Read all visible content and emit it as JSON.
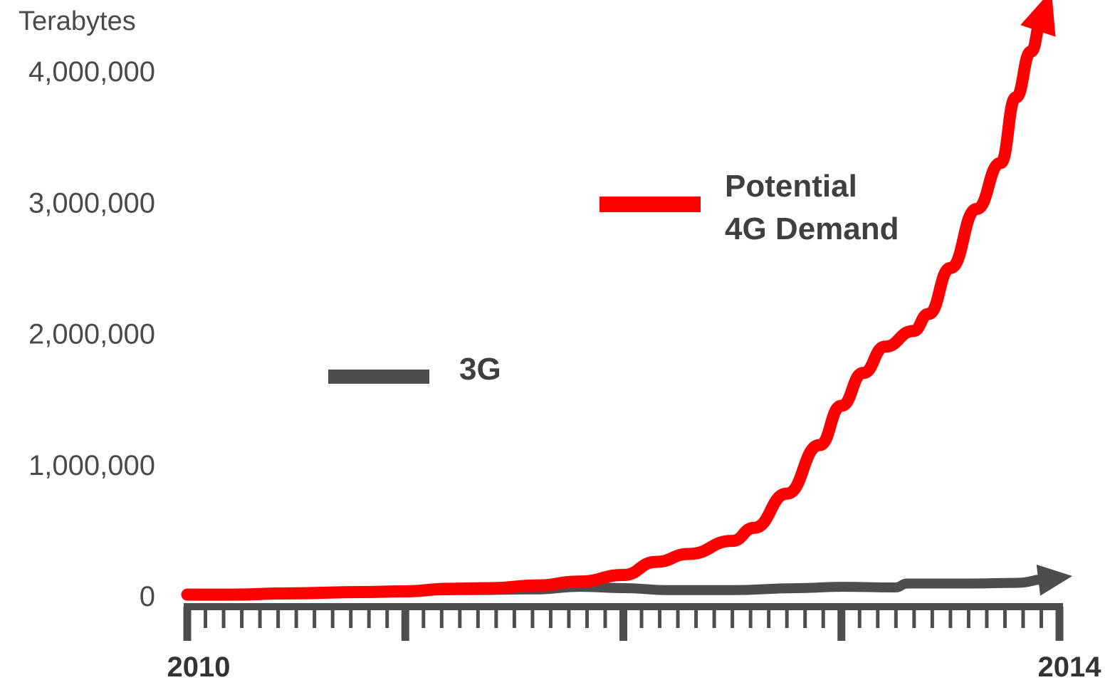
{
  "chart_data": {
    "type": "line",
    "title": "",
    "ylabel": "Terabytes",
    "xlabel": "",
    "xlim": [
      2010,
      2014
    ],
    "ylim": [
      0,
      4000000
    ],
    "y_ticks": [
      {
        "value": 0,
        "label": "0"
      },
      {
        "value": 1000000,
        "label": "1,000,000"
      },
      {
        "value": 2000000,
        "label": "2,000,000"
      },
      {
        "value": 3000000,
        "label": "3,000,000"
      },
      {
        "value": 4000000,
        "label": "4,000,000"
      }
    ],
    "x_ticks": [
      {
        "value": 2010,
        "label": "2010"
      },
      {
        "value": 2014,
        "label": "2014"
      }
    ],
    "minor_ticks_per_year": 12,
    "grid": false,
    "series": [
      {
        "name": "3G",
        "color": "#4d4d4d",
        "arrow": true,
        "points": [
          [
            2010.0,
            10000
          ],
          [
            2010.5,
            20000
          ],
          [
            2011.0,
            40000
          ],
          [
            2011.3,
            45000
          ],
          [
            2011.6,
            50000
          ],
          [
            2011.8,
            70000
          ],
          [
            2012.0,
            60000
          ],
          [
            2012.2,
            45000
          ],
          [
            2012.5,
            45000
          ],
          [
            2012.8,
            60000
          ],
          [
            2013.0,
            70000
          ],
          [
            2013.25,
            65000
          ],
          [
            2013.3,
            95000
          ],
          [
            2013.6,
            95000
          ],
          [
            2013.8,
            100000
          ],
          [
            2013.95,
            130000
          ]
        ]
      },
      {
        "name": "Potential\n4G Demand",
        "color": "#ff0000",
        "arrow": true,
        "points": [
          [
            2010.0,
            10000
          ],
          [
            2010.2,
            10000
          ],
          [
            2010.47,
            20000
          ],
          [
            2010.8,
            30000
          ],
          [
            2011.0,
            35000
          ],
          [
            2011.2,
            55000
          ],
          [
            2011.4,
            60000
          ],
          [
            2011.6,
            80000
          ],
          [
            2011.8,
            110000
          ],
          [
            2012.0,
            160000
          ],
          [
            2012.15,
            260000
          ],
          [
            2012.3,
            320000
          ],
          [
            2012.5,
            420000
          ],
          [
            2012.6,
            520000
          ],
          [
            2012.75,
            780000
          ],
          [
            2012.9,
            1150000
          ],
          [
            2013.0,
            1450000
          ],
          [
            2013.1,
            1700000
          ],
          [
            2013.2,
            1900000
          ],
          [
            2013.33,
            2020000
          ],
          [
            2013.4,
            2150000
          ],
          [
            2013.5,
            2500000
          ],
          [
            2013.62,
            2950000
          ],
          [
            2013.73,
            3300000
          ],
          [
            2013.8,
            3800000
          ],
          [
            2013.87,
            4150000
          ],
          [
            2013.92,
            4400000
          ]
        ]
      }
    ],
    "legend": {
      "placement": "center",
      "entries": [
        {
          "label": "Potential",
          "label2": "4G Demand",
          "color": "#ff0000"
        },
        {
          "label": "3G",
          "label2": "",
          "color": "#4d4d4d"
        }
      ]
    }
  }
}
